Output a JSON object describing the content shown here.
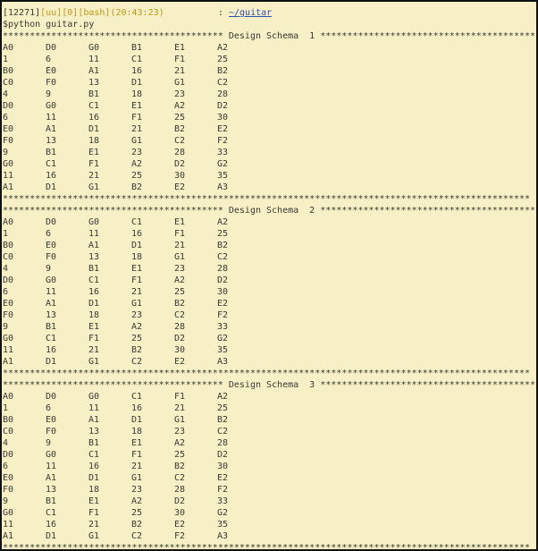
{
  "prompt": {
    "id": "[12271]",
    "user": "[uu]",
    "num": "[0]",
    "shell": "[bash]",
    "time": "(20:43:23)",
    "sep": ":",
    "path": "~/guitar"
  },
  "command": "$python guitar.py",
  "schemas": [
    {
      "header": "***************************************** Design Schema  1 ****************************************",
      "rows": [
        [
          "A0",
          "D0",
          "G0",
          "B1",
          "E1",
          "A2"
        ],
        [
          "1",
          "6",
          "11",
          "C1",
          "F1",
          "25"
        ],
        [
          "B0",
          "E0",
          "A1",
          "16",
          "21",
          "B2"
        ],
        [
          "C0",
          "F0",
          "13",
          "D1",
          "G1",
          "C2"
        ],
        [
          "4",
          "9",
          "B1",
          "18",
          "23",
          "28"
        ],
        [
          "D0",
          "G0",
          "C1",
          "E1",
          "A2",
          "D2"
        ],
        [
          "6",
          "11",
          "16",
          "F1",
          "25",
          "30"
        ],
        [
          "E0",
          "A1",
          "D1",
          "21",
          "B2",
          "E2"
        ],
        [
          "F0",
          "13",
          "18",
          "G1",
          "C2",
          "F2"
        ],
        [
          "9",
          "B1",
          "E1",
          "23",
          "28",
          "33"
        ],
        [
          "G0",
          "C1",
          "F1",
          "A2",
          "D2",
          "G2"
        ],
        [
          "11",
          "16",
          "21",
          "25",
          "30",
          "35"
        ],
        [
          "A1",
          "D1",
          "G1",
          "B2",
          "E2",
          "A3"
        ]
      ],
      "footer": "**************************************************************************************************"
    },
    {
      "header": "***************************************** Design Schema  2 ****************************************",
      "rows": [
        [
          "A0",
          "D0",
          "G0",
          "C1",
          "E1",
          "A2"
        ],
        [
          "1",
          "6",
          "11",
          "16",
          "F1",
          "25"
        ],
        [
          "B0",
          "E0",
          "A1",
          "D1",
          "21",
          "B2"
        ],
        [
          "C0",
          "F0",
          "13",
          "18",
          "G1",
          "C2"
        ],
        [
          "4",
          "9",
          "B1",
          "E1",
          "23",
          "28"
        ],
        [
          "D0",
          "G0",
          "C1",
          "F1",
          "A2",
          "D2"
        ],
        [
          "6",
          "11",
          "16",
          "21",
          "25",
          "30"
        ],
        [
          "E0",
          "A1",
          "D1",
          "G1",
          "B2",
          "E2"
        ],
        [
          "F0",
          "13",
          "18",
          "23",
          "C2",
          "F2"
        ],
        [
          "9",
          "B1",
          "E1",
          "A2",
          "28",
          "33"
        ],
        [
          "G0",
          "C1",
          "F1",
          "25",
          "D2",
          "G2"
        ],
        [
          "11",
          "16",
          "21",
          "B2",
          "30",
          "35"
        ],
        [
          "A1",
          "D1",
          "G1",
          "C2",
          "E2",
          "A3"
        ]
      ],
      "footer": "**************************************************************************************************"
    },
    {
      "header": "***************************************** Design Schema  3 ****************************************",
      "rows": [
        [
          "A0",
          "D0",
          "G0",
          "C1",
          "F1",
          "A2"
        ],
        [
          "1",
          "6",
          "11",
          "16",
          "21",
          "25"
        ],
        [
          "B0",
          "E0",
          "A1",
          "D1",
          "G1",
          "B2"
        ],
        [
          "C0",
          "F0",
          "13",
          "18",
          "23",
          "C2"
        ],
        [
          "4",
          "9",
          "B1",
          "E1",
          "A2",
          "28"
        ],
        [
          "D0",
          "G0",
          "C1",
          "F1",
          "25",
          "D2"
        ],
        [
          "6",
          "11",
          "16",
          "21",
          "B2",
          "30"
        ],
        [
          "E0",
          "A1",
          "D1",
          "G1",
          "C2",
          "E2"
        ],
        [
          "F0",
          "13",
          "18",
          "23",
          "28",
          "F2"
        ],
        [
          "9",
          "B1",
          "E1",
          "A2",
          "D2",
          "33"
        ],
        [
          "G0",
          "C1",
          "F1",
          "25",
          "30",
          "G2"
        ],
        [
          "11",
          "16",
          "21",
          "B2",
          "E2",
          "35"
        ],
        [
          "A1",
          "D1",
          "G1",
          "C2",
          "F2",
          "A3"
        ]
      ],
      "footer": "**************************************************************************************************"
    }
  ]
}
